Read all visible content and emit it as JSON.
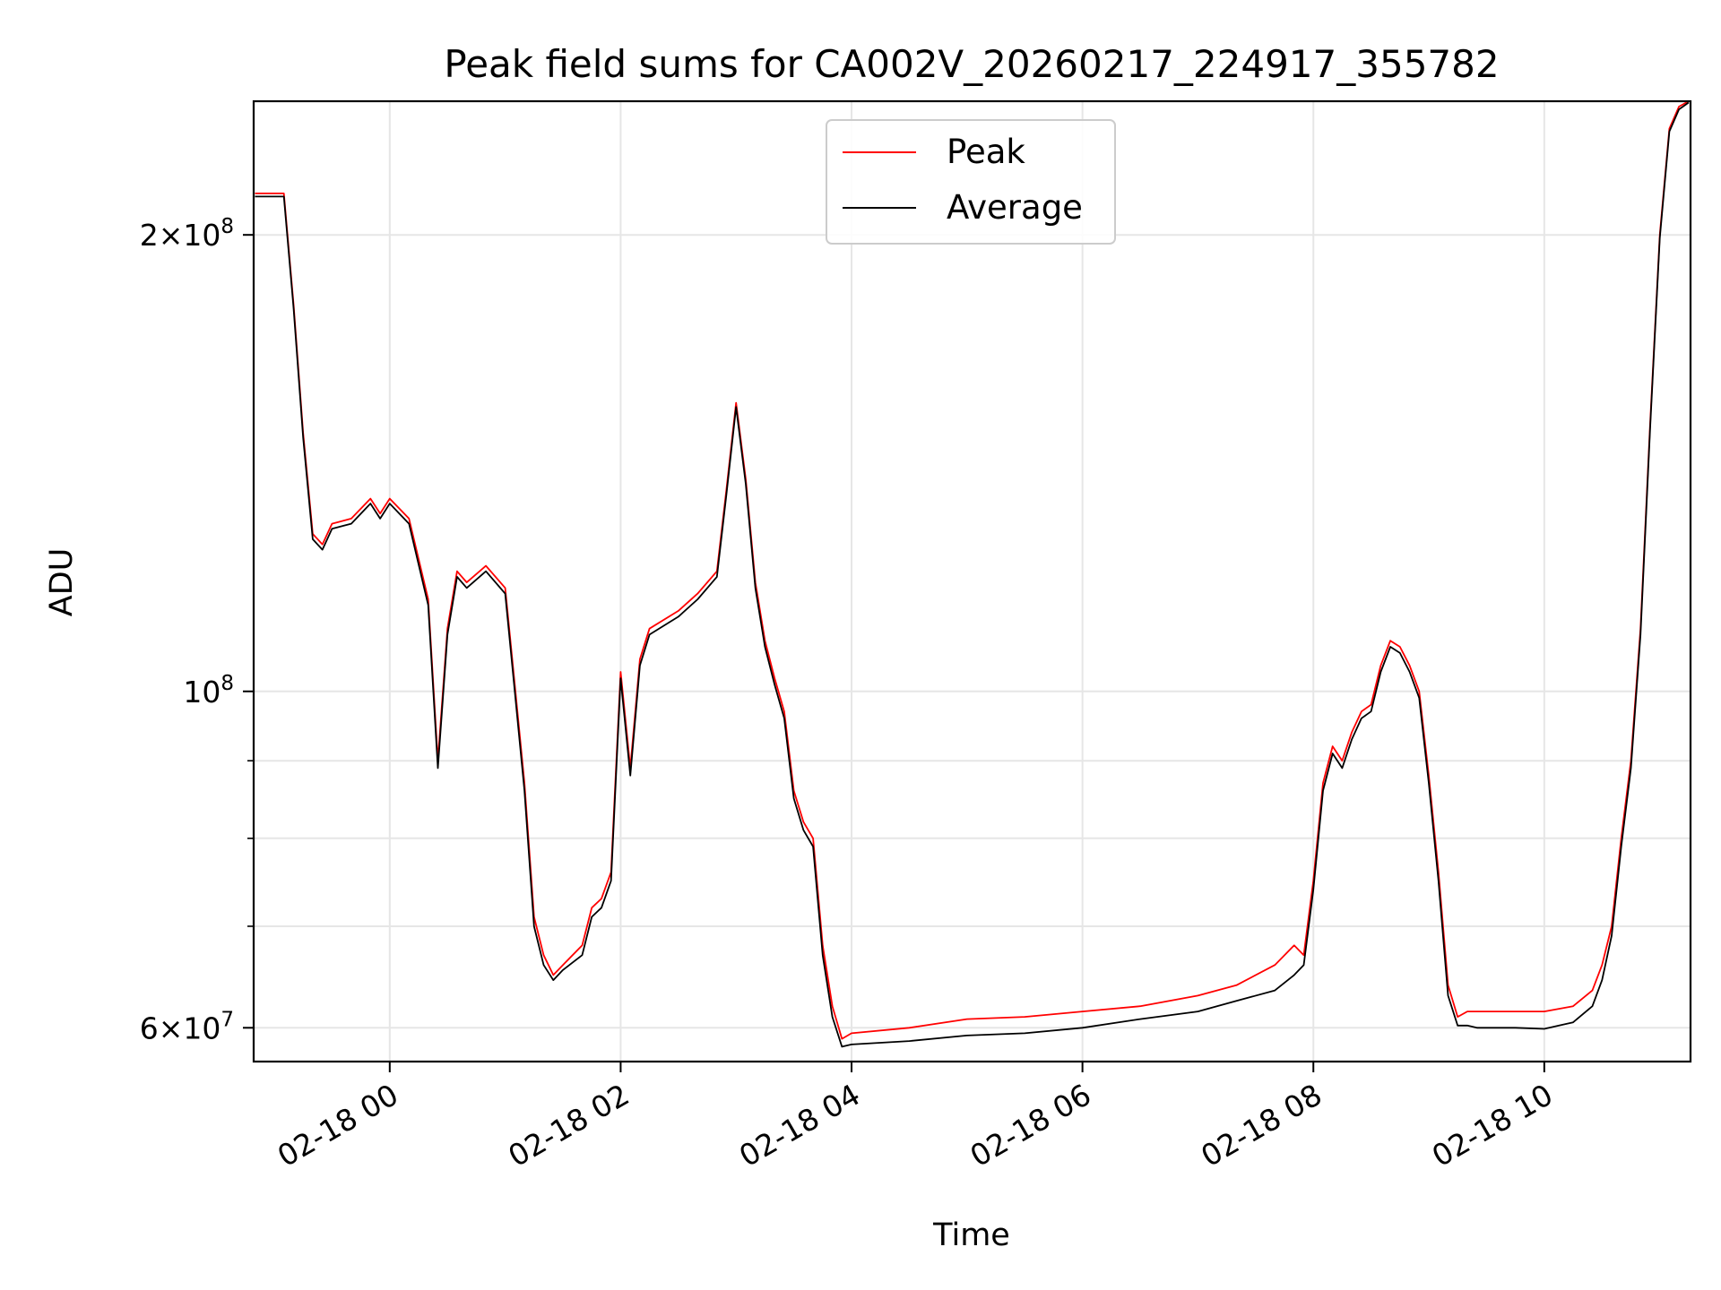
{
  "chart_data": {
    "type": "line",
    "title": "Peak field sums for CA002V_20260217_224917_355782",
    "xlabel": "Time",
    "ylabel": "ADU",
    "yscale": "log",
    "grid": true,
    "legend_position": "top-center",
    "xlim": [
      "2026-02-17T22:49:17",
      "2026-02-18T11:16:00"
    ],
    "ylim": [
      57000000,
      245000000
    ],
    "x_ticks": [
      {
        "value": "2026-02-18T00:00",
        "label": "02-18 00"
      },
      {
        "value": "2026-02-18T02:00",
        "label": "02-18 02"
      },
      {
        "value": "2026-02-18T04:00",
        "label": "02-18 04"
      },
      {
        "value": "2026-02-18T06:00",
        "label": "02-18 06"
      },
      {
        "value": "2026-02-18T08:00",
        "label": "02-18 08"
      },
      {
        "value": "2026-02-18T10:00",
        "label": "02-18 10"
      }
    ],
    "y_major_ticks": [
      {
        "value": 60000000,
        "base": "6×10",
        "exp": "7"
      },
      {
        "value": 100000000,
        "base": "10",
        "exp": "8"
      },
      {
        "value": 200000000,
        "base": "2×10",
        "exp": "8"
      }
    ],
    "y_minor_ticks": [
      70000000,
      80000000,
      90000000
    ],
    "series": [
      {
        "name": "Peak",
        "color": "#ff0000",
        "x": [
          "2026-02-17T22:50",
          "2026-02-17T23:00",
          "2026-02-17T23:05",
          "2026-02-17T23:10",
          "2026-02-17T23:15",
          "2026-02-17T23:20",
          "2026-02-17T23:25",
          "2026-02-17T23:30",
          "2026-02-17T23:40",
          "2026-02-17T23:50",
          "2026-02-17T23:55",
          "2026-02-18T00:00",
          "2026-02-18T00:10",
          "2026-02-18T00:20",
          "2026-02-18T00:25",
          "2026-02-18T00:30",
          "2026-02-18T00:35",
          "2026-02-18T00:40",
          "2026-02-18T00:50",
          "2026-02-18T01:00",
          "2026-02-18T01:05",
          "2026-02-18T01:10",
          "2026-02-18T01:15",
          "2026-02-18T01:20",
          "2026-02-18T01:25",
          "2026-02-18T01:30",
          "2026-02-18T01:40",
          "2026-02-18T01:45",
          "2026-02-18T01:50",
          "2026-02-18T01:55",
          "2026-02-18T02:00",
          "2026-02-18T02:05",
          "2026-02-18T02:10",
          "2026-02-18T02:15",
          "2026-02-18T02:30",
          "2026-02-18T02:40",
          "2026-02-18T02:50",
          "2026-02-18T02:55",
          "2026-02-18T03:00",
          "2026-02-18T03:05",
          "2026-02-18T03:10",
          "2026-02-18T03:15",
          "2026-02-18T03:20",
          "2026-02-18T03:25",
          "2026-02-18T03:30",
          "2026-02-18T03:35",
          "2026-02-18T03:40",
          "2026-02-18T03:45",
          "2026-02-18T03:50",
          "2026-02-18T03:55",
          "2026-02-18T04:00",
          "2026-02-18T04:30",
          "2026-02-18T05:00",
          "2026-02-18T05:30",
          "2026-02-18T06:00",
          "2026-02-18T06:30",
          "2026-02-18T07:00",
          "2026-02-18T07:20",
          "2026-02-18T07:40",
          "2026-02-18T07:50",
          "2026-02-18T07:55",
          "2026-02-18T08:00",
          "2026-02-18T08:05",
          "2026-02-18T08:10",
          "2026-02-18T08:15",
          "2026-02-18T08:20",
          "2026-02-18T08:25",
          "2026-02-18T08:30",
          "2026-02-18T08:35",
          "2026-02-18T08:40",
          "2026-02-18T08:45",
          "2026-02-18T08:50",
          "2026-02-18T08:55",
          "2026-02-18T09:00",
          "2026-02-18T09:05",
          "2026-02-18T09:10",
          "2026-02-18T09:15",
          "2026-02-18T09:20",
          "2026-02-18T09:25",
          "2026-02-18T09:30",
          "2026-02-18T09:45",
          "2026-02-18T10:00",
          "2026-02-18T10:15",
          "2026-02-18T10:25",
          "2026-02-18T10:30",
          "2026-02-18T10:35",
          "2026-02-18T10:40",
          "2026-02-18T10:45",
          "2026-02-18T10:50",
          "2026-02-18T10:55",
          "2026-02-18T11:00",
          "2026-02-18T11:05",
          "2026-02-18T11:10",
          "2026-02-18T11:15"
        ],
        "y": [
          213000000,
          213000000,
          213000000,
          180000000,
          148000000,
          127000000,
          125000000,
          129000000,
          130000000,
          134000000,
          131000000,
          134000000,
          130000000,
          115000000,
          90000000,
          110000000,
          120000000,
          118000000,
          121000000,
          117000000,
          101000000,
          87000000,
          71000000,
          67000000,
          65000000,
          66000000,
          68000000,
          72000000,
          73000000,
          76000000,
          103000000,
          89000000,
          105000000,
          110000000,
          113000000,
          116000000,
          120000000,
          136000000,
          155000000,
          138000000,
          118000000,
          108000000,
          102000000,
          97000000,
          86000000,
          82000000,
          80000000,
          68000000,
          62000000,
          59000000,
          59500000,
          60000000,
          60800000,
          61000000,
          61500000,
          62000000,
          63000000,
          64000000,
          66000000,
          68000000,
          67000000,
          75000000,
          87000000,
          92000000,
          90000000,
          94000000,
          97000000,
          98000000,
          104000000,
          108000000,
          107000000,
          104000000,
          100000000,
          88000000,
          76000000,
          64000000,
          61000000,
          61500000,
          61500000,
          61500000,
          61500000,
          61500000,
          62000000,
          63500000,
          66000000,
          70000000,
          80000000,
          90000000,
          110000000,
          150000000,
          200000000,
          235000000,
          243000000,
          245000000
        ]
      },
      {
        "name": "Average",
        "color": "#000000",
        "x": [
          "2026-02-17T22:50",
          "2026-02-17T23:00",
          "2026-02-17T23:05",
          "2026-02-17T23:10",
          "2026-02-17T23:15",
          "2026-02-17T23:20",
          "2026-02-17T23:25",
          "2026-02-17T23:30",
          "2026-02-17T23:40",
          "2026-02-17T23:50",
          "2026-02-17T23:55",
          "2026-02-18T00:00",
          "2026-02-18T00:10",
          "2026-02-18T00:20",
          "2026-02-18T00:25",
          "2026-02-18T00:30",
          "2026-02-18T00:35",
          "2026-02-18T00:40",
          "2026-02-18T00:50",
          "2026-02-18T01:00",
          "2026-02-18T01:05",
          "2026-02-18T01:10",
          "2026-02-18T01:15",
          "2026-02-18T01:20",
          "2026-02-18T01:25",
          "2026-02-18T01:30",
          "2026-02-18T01:40",
          "2026-02-18T01:45",
          "2026-02-18T01:50",
          "2026-02-18T01:55",
          "2026-02-18T02:00",
          "2026-02-18T02:05",
          "2026-02-18T02:10",
          "2026-02-18T02:15",
          "2026-02-18T02:30",
          "2026-02-18T02:40",
          "2026-02-18T02:50",
          "2026-02-18T02:55",
          "2026-02-18T03:00",
          "2026-02-18T03:05",
          "2026-02-18T03:10",
          "2026-02-18T03:15",
          "2026-02-18T03:20",
          "2026-02-18T03:25",
          "2026-02-18T03:30",
          "2026-02-18T03:35",
          "2026-02-18T03:40",
          "2026-02-18T03:45",
          "2026-02-18T03:50",
          "2026-02-18T03:55",
          "2026-02-18T04:00",
          "2026-02-18T04:30",
          "2026-02-18T05:00",
          "2026-02-18T05:30",
          "2026-02-18T06:00",
          "2026-02-18T06:30",
          "2026-02-18T07:00",
          "2026-02-18T07:20",
          "2026-02-18T07:40",
          "2026-02-18T07:50",
          "2026-02-18T07:55",
          "2026-02-18T08:00",
          "2026-02-18T08:05",
          "2026-02-18T08:10",
          "2026-02-18T08:15",
          "2026-02-18T08:20",
          "2026-02-18T08:25",
          "2026-02-18T08:30",
          "2026-02-18T08:35",
          "2026-02-18T08:40",
          "2026-02-18T08:45",
          "2026-02-18T08:50",
          "2026-02-18T08:55",
          "2026-02-18T09:00",
          "2026-02-18T09:05",
          "2026-02-18T09:10",
          "2026-02-18T09:15",
          "2026-02-18T09:20",
          "2026-02-18T09:25",
          "2026-02-18T09:30",
          "2026-02-18T09:45",
          "2026-02-18T10:00",
          "2026-02-18T10:15",
          "2026-02-18T10:25",
          "2026-02-18T10:30",
          "2026-02-18T10:35",
          "2026-02-18T10:40",
          "2026-02-18T10:45",
          "2026-02-18T10:50",
          "2026-02-18T10:55",
          "2026-02-18T11:00",
          "2026-02-18T11:05",
          "2026-02-18T11:10",
          "2026-02-18T11:15"
        ],
        "y": [
          212000000,
          212000000,
          212000000,
          179000000,
          147000000,
          126000000,
          124000000,
          128000000,
          129000000,
          133000000,
          130000000,
          133000000,
          129000000,
          114000000,
          89000000,
          109000000,
          119000000,
          117000000,
          120000000,
          116000000,
          100000000,
          86000000,
          70000000,
          66000000,
          64500000,
          65500000,
          67000000,
          71000000,
          72000000,
          75000000,
          102000000,
          88000000,
          104000000,
          109000000,
          112000000,
          115000000,
          119000000,
          135000000,
          154000000,
          137000000,
          117000000,
          107000000,
          101000000,
          96000000,
          85000000,
          81000000,
          79000000,
          67000000,
          61000000,
          58300000,
          58500000,
          58800000,
          59300000,
          59500000,
          60000000,
          60800000,
          61500000,
          62500000,
          63500000,
          65000000,
          66000000,
          74000000,
          86000000,
          91000000,
          89000000,
          93000000,
          96000000,
          97000000,
          103000000,
          107000000,
          106000000,
          103000000,
          99000000,
          87000000,
          75000000,
          63000000,
          60200000,
          60200000,
          60000000,
          60000000,
          60000000,
          59900000,
          60500000,
          62000000,
          64500000,
          69000000,
          79000000,
          89000000,
          109000000,
          149000000,
          199000000,
          234000000,
          242000000,
          244500000
        ]
      }
    ]
  }
}
